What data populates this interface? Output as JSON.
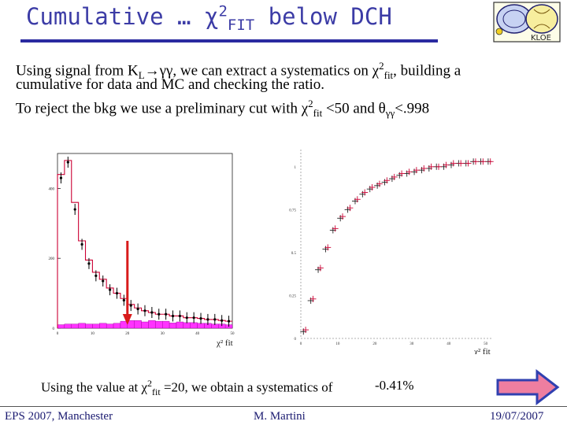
{
  "slide": {
    "title_text": "Cumulative … χ",
    "title_sup": "2",
    "title_sub": "FIT",
    "title_tail": " below DCH",
    "line1_a": "Using signal from K",
    "line1_sub": "L",
    "line1_b": "→γγ, we can extract a systematics on χ",
    "line1_sup": "2",
    "line1_sub2": "fit",
    "line1_c": ", building a",
    "line2": "cumulative for data and MC and checking the ratio.",
    "line3_a": "To reject the bkg we use a preliminary cut with χ",
    "line3_sup": "2",
    "line3_sub": "fit",
    "line3_b": " <50 and θ",
    "line3_sub2": "γγ",
    "line3_c": "<.998",
    "result_a": "Using the value at χ",
    "result_sup": "2",
    "result_sub": "fit",
    "result_b": " =20, we obtain a systematics of",
    "result_value": "-0.41%"
  },
  "logo": {
    "icon": "kloe-collaboration-logo",
    "text": "KLOE"
  },
  "colors": {
    "title": "#3c3ca6",
    "rule": "#2a2aa0",
    "histogram_line": "#cc0033",
    "histogram_fill": "#ff33ff",
    "cut_arrow": "#d81b1b",
    "ratio_marker": "#cc0033",
    "nav_arrow_fill": "#ee7ea0",
    "nav_arrow_stroke": "#3040b0"
  },
  "chart_data": [
    {
      "type": "bar",
      "xlabel": "χ² fit",
      "ylim": [
        0,
        500
      ],
      "yticks": [
        "0",
        "200",
        "400"
      ],
      "xticks": [
        "0",
        "10",
        "20",
        "30",
        "40",
        "50"
      ],
      "xlim": [
        0,
        50
      ],
      "bin_width": 2,
      "series": [
        {
          "kind": "data-points",
          "x": [
            1,
            3,
            5,
            7,
            9,
            11,
            13,
            15,
            17,
            19,
            21,
            23,
            25,
            27,
            29,
            31,
            33,
            35,
            37,
            39,
            41,
            43,
            45,
            47,
            49
          ],
          "values": [
            430,
            475,
            340,
            240,
            185,
            150,
            135,
            110,
            100,
            80,
            65,
            55,
            50,
            45,
            40,
            40,
            35,
            35,
            30,
            30,
            28,
            25,
            25,
            22,
            20
          ]
        },
        {
          "kind": "mc-histogram",
          "x": [
            1,
            3,
            5,
            7,
            9,
            11,
            13,
            15,
            17,
            19,
            21,
            23,
            25,
            27,
            29,
            31,
            33,
            35,
            37,
            39,
            41,
            43,
            45,
            47,
            49
          ],
          "values": [
            440,
            480,
            360,
            250,
            195,
            160,
            140,
            115,
            100,
            85,
            68,
            58,
            50,
            45,
            40,
            40,
            35,
            35,
            30,
            30,
            28,
            25,
            25,
            22,
            20
          ]
        },
        {
          "kind": "background-fill",
          "x": [
            1,
            3,
            5,
            7,
            9,
            11,
            13,
            15,
            17,
            19,
            21,
            23,
            25,
            27,
            29,
            31,
            33,
            35,
            37,
            39,
            41,
            43,
            45,
            47,
            49
          ],
          "values": [
            10,
            12,
            12,
            14,
            12,
            12,
            14,
            12,
            14,
            20,
            22,
            22,
            18,
            22,
            20,
            20,
            15,
            18,
            16,
            16,
            14,
            14,
            12,
            12,
            10
          ]
        }
      ],
      "cut_marker_x": 20
    },
    {
      "type": "scatter",
      "xlabel": "χ² fit",
      "xlim": [
        0,
        52
      ],
      "ylim": [
        0,
        1.1
      ],
      "xticks": [
        "0",
        "10",
        "20",
        "30",
        "40",
        "50"
      ],
      "yticks": [
        "0",
        "0.25",
        "0.5",
        "0.75",
        "1"
      ],
      "series": [
        {
          "kind": "data",
          "x": [
            1,
            3,
            5,
            7,
            9,
            11,
            13,
            15,
            17,
            19,
            21,
            23,
            25,
            27,
            29,
            31,
            33,
            35,
            37,
            39,
            41,
            43,
            45,
            47,
            49,
            51
          ],
          "values": [
            0.04,
            0.22,
            0.4,
            0.52,
            0.63,
            0.7,
            0.75,
            0.8,
            0.84,
            0.87,
            0.89,
            0.91,
            0.93,
            0.95,
            0.96,
            0.97,
            0.98,
            0.99,
            1.0,
            1.0,
            1.01,
            1.02,
            1.02,
            1.03,
            1.03,
            1.03
          ]
        },
        {
          "kind": "mc",
          "x": [
            1,
            3,
            5,
            7,
            9,
            11,
            13,
            15,
            17,
            19,
            21,
            23,
            25,
            27,
            29,
            31,
            33,
            35,
            37,
            39,
            41,
            43,
            45,
            47,
            49,
            51
          ],
          "values": [
            0.05,
            0.23,
            0.41,
            0.53,
            0.64,
            0.71,
            0.76,
            0.81,
            0.85,
            0.88,
            0.9,
            0.92,
            0.94,
            0.96,
            0.97,
            0.98,
            0.99,
            1.0,
            1.0,
            1.01,
            1.02,
            1.02,
            1.02,
            1.03,
            1.03,
            1.03
          ]
        }
      ]
    }
  ],
  "footer": {
    "left": "EPS 2007, Manchester",
    "center": "M. Martini",
    "right": "19/07/2007"
  }
}
